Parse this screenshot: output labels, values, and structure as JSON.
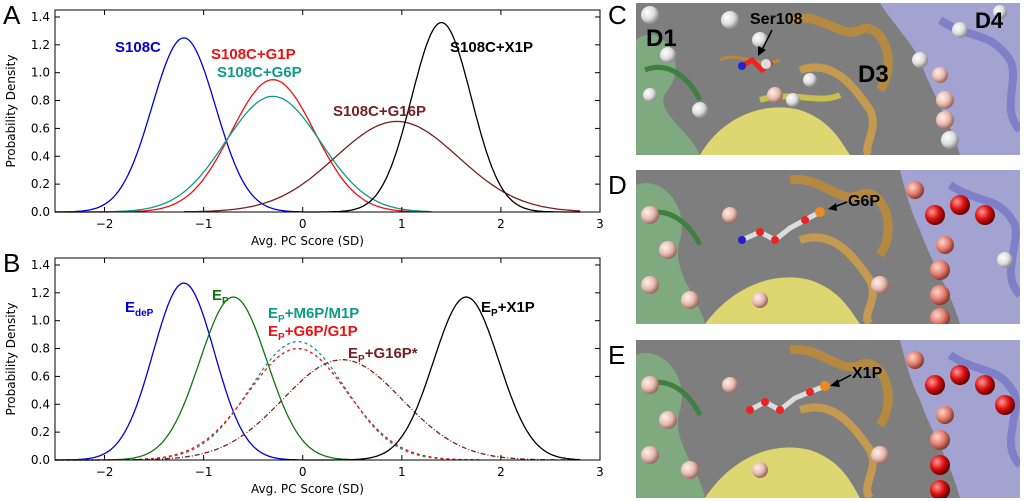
{
  "figure": {
    "panels": {
      "A": "A",
      "B": "B",
      "C": "C",
      "D": "D",
      "E": "E"
    },
    "structure_labels": {
      "C": {
        "domain1": "D1",
        "domain3": "D3",
        "domain4": "D4",
        "residue": "Ser108"
      },
      "D": {
        "ligand": "G6P"
      },
      "E": {
        "ligand": "X1P"
      }
    },
    "colors": {
      "blue": "#0000dd",
      "red": "#ee1111",
      "teal": "#119988",
      "maroon": "#772222",
      "black": "#000000",
      "green": "#117711",
      "protein_bg": "#7e7e7e"
    }
  },
  "chart_data": [
    {
      "id": "A",
      "type": "line",
      "xlabel": "Avg. PC Score (SD)",
      "ylabel": "Probability Density",
      "xlim": [
        -2.5,
        3.0
      ],
      "ylim": [
        0.0,
        1.45
      ],
      "xticks": [
        -2,
        -1,
        0,
        1,
        2,
        3
      ],
      "yticks": [
        0.0,
        0.2,
        0.4,
        0.6,
        0.8,
        1.0,
        1.2,
        1.4
      ],
      "series": [
        {
          "name": "S108C",
          "color": "#0000dd",
          "mu": -1.2,
          "sigma": 0.32,
          "peak": 1.25,
          "domain": [
            -2.5,
            0.0
          ],
          "dash": "solid"
        },
        {
          "name": "S108C+G1P",
          "color": "#ee1111",
          "mu": -0.3,
          "sigma": 0.42,
          "peak": 0.95,
          "domain": [
            -2.5,
            1.2
          ],
          "dash": "solid"
        },
        {
          "name": "S108C+G6P",
          "color": "#119988",
          "mu": -0.3,
          "sigma": 0.48,
          "peak": 0.83,
          "domain": [
            -2.5,
            1.3
          ],
          "dash": "solid"
        },
        {
          "name": "S108C+G16P",
          "color": "#772222",
          "mu": 0.95,
          "sigma": 0.62,
          "peak": 0.65,
          "domain": [
            -1.2,
            2.8
          ],
          "dash": "solid"
        },
        {
          "name": "S108C+X1P",
          "color": "#000000",
          "mu": 1.4,
          "sigma": 0.3,
          "peak": 1.36,
          "domain": [
            0.0,
            2.8
          ],
          "dash": "solid"
        }
      ]
    },
    {
      "id": "B",
      "type": "line",
      "xlabel": "Avg. PC Score (SD)",
      "ylabel": "Probability Density",
      "xlim": [
        -2.5,
        3.0
      ],
      "ylim": [
        0.0,
        1.45
      ],
      "xticks": [
        -2,
        -1,
        0,
        1,
        2,
        3
      ],
      "yticks": [
        0.0,
        0.2,
        0.4,
        0.6,
        0.8,
        1.0,
        1.2,
        1.4
      ],
      "series": [
        {
          "name": "E_deP",
          "base": "E",
          "sub": "deP",
          "tail": "",
          "color": "#0000dd",
          "mu": -1.2,
          "sigma": 0.31,
          "peak": 1.27,
          "domain": [
            -2.5,
            0.0
          ],
          "dash": "solid"
        },
        {
          "name": "E_P",
          "base": "E",
          "sub": "P",
          "tail": "",
          "color": "#117711",
          "mu": -0.7,
          "sigma": 0.34,
          "peak": 1.17,
          "domain": [
            -2.5,
            0.5
          ],
          "dash": "solid"
        },
        {
          "name": "E_P+M6P/M1P",
          "base": "E",
          "sub": "P",
          "tail": "+M6P/M1P",
          "color": "#119988",
          "mu": -0.05,
          "sigma": 0.48,
          "peak": 0.85,
          "domain": [
            -2.5,
            1.8
          ],
          "dash": "dash"
        },
        {
          "name": "E_P+G6P/G1P",
          "base": "E",
          "sub": "P",
          "tail": "+G6P/G1P",
          "color": "#ee1111",
          "mu": -0.05,
          "sigma": 0.5,
          "peak": 0.8,
          "domain": [
            -2.5,
            1.8
          ],
          "dash": "dash"
        },
        {
          "name": "E_P+G16P*",
          "base": "E",
          "sub": "P",
          "tail": "+G16P*",
          "color": "#772222",
          "mu": 0.4,
          "sigma": 0.6,
          "peak": 0.72,
          "domain": [
            -2.5,
            2.8
          ],
          "dash": "dashdot"
        },
        {
          "name": "E_P+X1P",
          "base": "E",
          "sub": "P",
          "tail": "+X1P",
          "color": "#000000",
          "mu": 1.65,
          "sigma": 0.33,
          "peak": 1.17,
          "domain": [
            0.0,
            2.8
          ],
          "dash": "solid"
        }
      ]
    }
  ]
}
